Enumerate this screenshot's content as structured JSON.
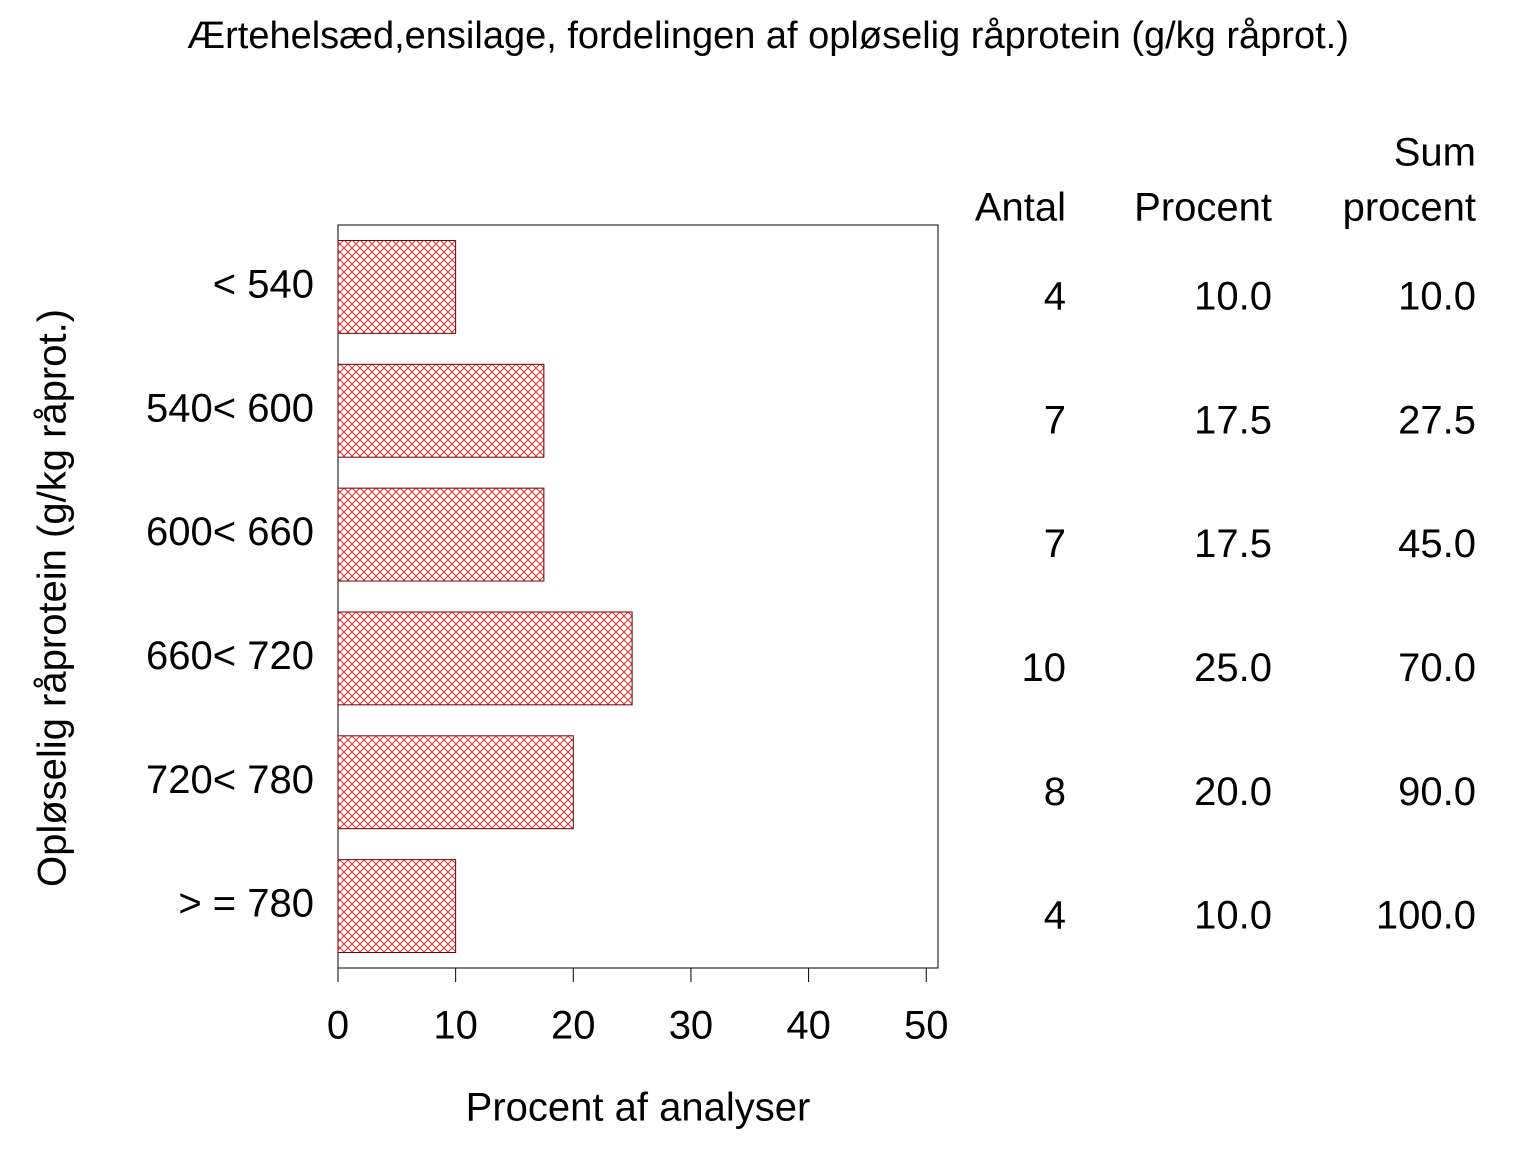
{
  "chart_data": {
    "type": "barh",
    "title": "Ærtehelsæd,ensilage,  fordelingen  af  opløselig  råprotein  (g/kg  råprot.)",
    "x_label": "Procent  af  analyser",
    "y_label": "Opløselig  råprotein  (g/kg  råprot.)",
    "categories": [
      "< 540",
      "540< 600",
      "600< 660",
      "660< 720",
      "720< 780",
      "> = 780"
    ],
    "values": [
      10,
      17.5,
      17.5,
      25,
      20,
      10
    ],
    "value_labels": [
      "10.0",
      "17.5",
      "17.5",
      "25.0",
      "20.0",
      "10.0"
    ],
    "color": "#e03030",
    "xlim": [
      0,
      51
    ],
    "xticks": [
      0,
      10,
      20,
      30,
      40,
      50
    ],
    "table": {
      "headers": [
        [
          "Antal"
        ],
        [
          "Procent"
        ],
        [
          "Sum",
          "procent"
        ]
      ],
      "antal": [
        4,
        7,
        7,
        10,
        8,
        4
      ],
      "sum_procent": [
        "10.0",
        "27.5",
        "45.0",
        "70.0",
        "90.0",
        "100.0"
      ]
    }
  }
}
